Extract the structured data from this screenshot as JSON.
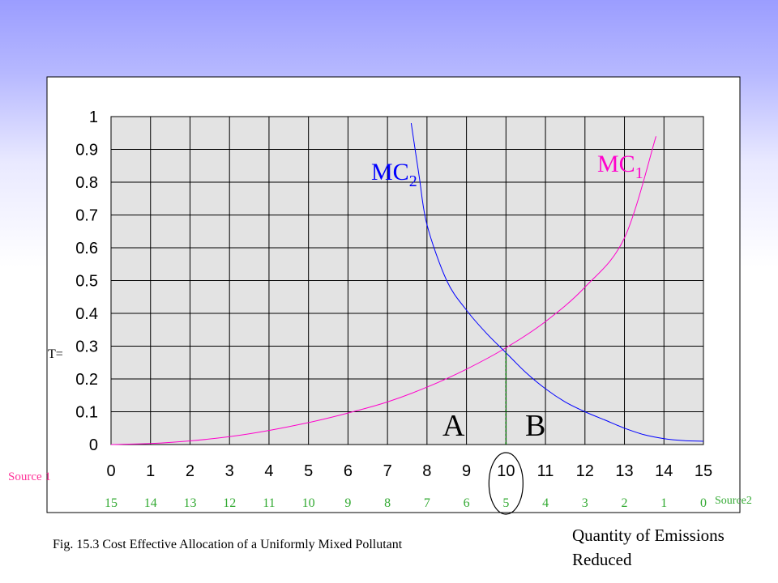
{
  "chart_data": {
    "type": "line",
    "ylim": [
      0,
      1
    ],
    "yticks": [
      "0",
      "0.1",
      "0.2",
      "0.3",
      "0.4",
      "0.5",
      "0.6",
      "0.7",
      "0.8",
      "0.9",
      "1"
    ],
    "xlim": [
      0,
      15
    ],
    "xticks_source1": [
      "0",
      "1",
      "2",
      "3",
      "4",
      "5",
      "6",
      "7",
      "8",
      "9",
      "10",
      "11",
      "12",
      "13",
      "14",
      "15"
    ],
    "xticks_source2": [
      "15",
      "14",
      "13",
      "12",
      "11",
      "10",
      "9",
      "8",
      "7",
      "6",
      "5",
      "4",
      "3",
      "2",
      "1",
      "0"
    ],
    "grid": true,
    "series": [
      {
        "name": "MC1",
        "color": "#ff00cc",
        "x": [
          0,
          1,
          2,
          3,
          4,
          5,
          6,
          7,
          8,
          9,
          10,
          11,
          12,
          13,
          13.8
        ],
        "y": [
          0,
          0.003,
          0.011,
          0.024,
          0.043,
          0.067,
          0.096,
          0.13,
          0.175,
          0.23,
          0.295,
          0.375,
          0.48,
          0.63,
          0.94
        ]
      },
      {
        "name": "MC2",
        "color": "#0000ff",
        "x": [
          7.6,
          7.8,
          8,
          8.5,
          9,
          9.5,
          10,
          10.5,
          11,
          11.5,
          12,
          12.5,
          13,
          13.5,
          14,
          14.5,
          15
        ],
        "y": [
          0.98,
          0.82,
          0.67,
          0.5,
          0.41,
          0.34,
          0.28,
          0.22,
          0.17,
          0.13,
          0.1,
          0.075,
          0.05,
          0.03,
          0.018,
          0.012,
          0.01
        ]
      }
    ],
    "equilibrium": {
      "x": 10,
      "y": 0.28
    },
    "labels": {
      "mc1": "MC",
      "mc1_sub": "1",
      "mc2": "MC",
      "mc2_sub": "2",
      "tax": "T=",
      "area_a": "A",
      "area_b": "B",
      "source1": "Source 1",
      "source2": "Source2"
    },
    "caption": "Fig. 15.3 Cost Effective Allocation of a Uniformly Mixed Pollutant",
    "xlabel": "Quantity of Emissions Reduced"
  }
}
